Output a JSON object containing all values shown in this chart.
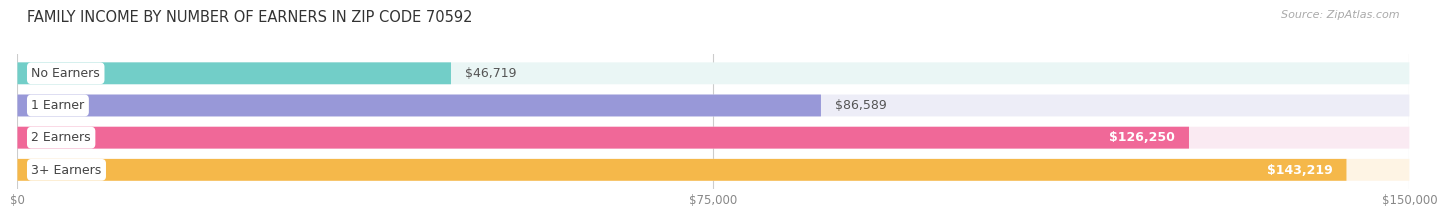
{
  "title": "FAMILY INCOME BY NUMBER OF EARNERS IN ZIP CODE 70592",
  "source": "Source: ZipAtlas.com",
  "categories": [
    "No Earners",
    "1 Earner",
    "2 Earners",
    "3+ Earners"
  ],
  "values": [
    46719,
    86589,
    126250,
    143219
  ],
  "bar_colors": [
    "#72cec8",
    "#9898d8",
    "#f06898",
    "#f5b84a"
  ],
  "bar_bg_colors": [
    "#eaf6f5",
    "#ededf7",
    "#faeaf2",
    "#fef4e4"
  ],
  "max_value": 150000,
  "x_ticks": [
    0,
    75000,
    150000
  ],
  "x_tick_labels": [
    "$0",
    "$75,000",
    "$150,000"
  ],
  "value_labels": [
    "$46,719",
    "$86,589",
    "$126,250",
    "$143,219"
  ],
  "value_inside": [
    false,
    false,
    true,
    true
  ],
  "figwidth": 14.06,
  "figheight": 2.33,
  "background_color": "#ffffff",
  "bar_height": 0.68,
  "title_fontsize": 10.5,
  "label_fontsize": 9,
  "tick_fontsize": 8.5,
  "source_fontsize": 8
}
